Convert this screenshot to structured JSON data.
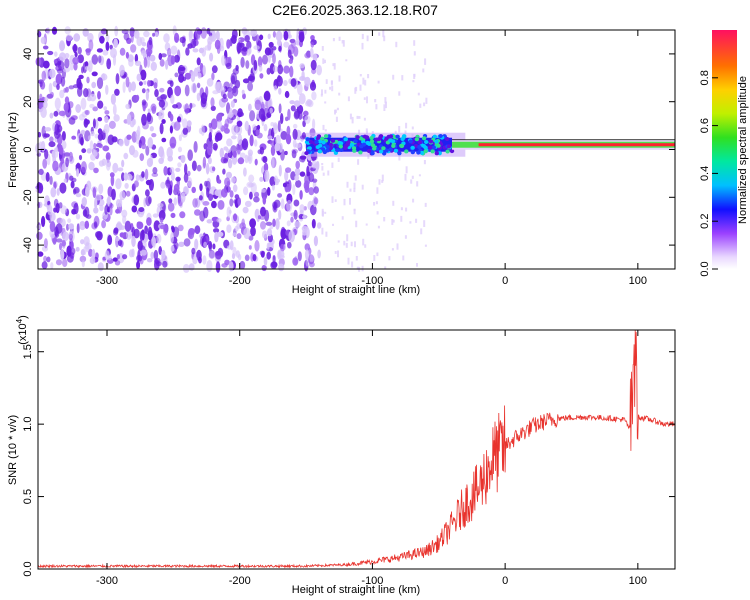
{
  "title": "C2E6.2025.363.12.18.R07",
  "colors": {
    "spectrogram_noise": "#7a2ee8",
    "snr_line": "#e8332d",
    "frame": "#000000"
  },
  "chart_data": [
    {
      "type": "heatmap",
      "xlabel": "Height of straight line (km)",
      "ylabel": "Frequency (Hz)",
      "xlim": [
        -352,
        128
      ],
      "ylim": [
        -50,
        50
      ],
      "xticks": [
        -300,
        -200,
        -100,
        0,
        100
      ],
      "yticks": [
        -40,
        -20,
        0,
        20,
        40
      ],
      "xtick_labels": [
        "-300",
        "-200",
        "-100",
        "0",
        "100"
      ],
      "ytick_labels": [
        "-40",
        "-20",
        "0",
        "20",
        "40"
      ],
      "noise_region_x": [
        -352,
        -140
      ],
      "signal_band_center_hz": 2,
      "grid": false,
      "colorbar": {
        "label": "Normalized spectral amplitude",
        "range": [
          0,
          1
        ],
        "ticks": [
          0.0,
          0.2,
          0.4,
          0.6,
          0.8
        ],
        "tick_labels": [
          "0.0",
          "0.2",
          "0.4",
          "0.6",
          "0.8"
        ],
        "placement": "right"
      }
    },
    {
      "type": "line",
      "xlabel": "Height of straight line (km)",
      "ylabel": "SNR (10 * v/v)",
      "scale_note": "(x10^4)",
      "scale_base": "(x10",
      "scale_exp": "4",
      "scale_close": ")",
      "xlim": [
        -352,
        128
      ],
      "ylim": [
        0,
        1.65
      ],
      "xticks": [
        -300,
        -200,
        -100,
        0,
        100
      ],
      "yticks": [
        0.0,
        0.5,
        1.0,
        1.5
      ],
      "xtick_labels": [
        "-300",
        "-200",
        "-100",
        "0",
        "100"
      ],
      "ytick_labels": [
        "0.0",
        "0.5",
        "1.0",
        "1.5"
      ],
      "grid": false,
      "series_profile": {
        "x": [
          -352,
          -300,
          -200,
          -150,
          -120,
          -100,
          -80,
          -60,
          -50,
          -40,
          -30,
          -20,
          -15,
          -10,
          -5,
          0,
          10,
          20,
          30,
          40,
          60,
          80,
          90,
          95,
          97,
          100,
          110,
          120,
          128
        ],
        "y": [
          0.02,
          0.02,
          0.02,
          0.02,
          0.03,
          0.05,
          0.08,
          0.12,
          0.18,
          0.3,
          0.45,
          0.55,
          0.65,
          0.75,
          0.8,
          0.85,
          0.92,
          0.98,
          1.02,
          1.04,
          1.05,
          1.04,
          1.03,
          0.95,
          1.6,
          1.05,
          1.03,
          1.0,
          1.0
        ]
      }
    }
  ]
}
